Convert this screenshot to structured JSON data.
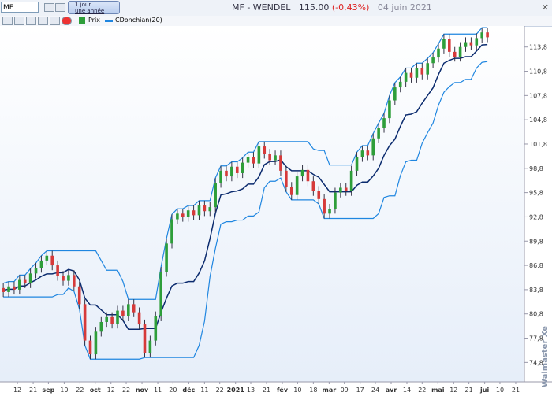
{
  "ui": {
    "symbol": "MF",
    "period": [
      "1 jour",
      "une année"
    ],
    "watermark": "Walmaster Xe"
  },
  "chart_data": {
    "type": "candlestick",
    "title": "MF - WENDEL",
    "price": "115.00",
    "change": "(-0,43%)",
    "date": "04 juin 2021",
    "candles_name": "Prix",
    "up_color": "#2e9e3a",
    "down_color": "#d63a3a",
    "open": [
      84.0,
      83.5,
      84.2,
      83.8,
      85.0,
      84.6,
      85.8,
      86.5,
      87.4,
      88.0,
      86.8,
      85.5,
      84.9,
      85.6,
      84.2,
      82.0,
      77.5,
      75.8,
      78.6,
      79.8,
      80.4,
      79.6,
      81.2,
      80.5,
      82.0,
      81.0,
      79.5,
      76.0,
      77.5,
      80.5,
      86.0,
      89.5,
      92.5,
      93.2,
      92.8,
      93.6,
      93.0,
      94.2,
      93.5,
      94.0,
      97.0,
      98.5,
      97.8,
      99.0,
      98.2,
      99.5,
      100.2,
      99.4,
      101.5,
      100.6,
      99.8,
      100.4,
      98.5,
      96.5,
      95.5,
      97.8,
      98.6,
      97.2,
      96.0,
      95.0,
      93.2,
      93.8,
      95.8,
      96.4,
      96.0,
      98.5,
      100.2,
      101.0,
      100.4,
      102.5,
      103.8,
      105.0,
      107.2,
      108.8,
      109.5,
      110.6,
      110.0,
      111.2,
      110.4,
      111.8,
      112.5,
      113.6,
      114.8,
      113.2,
      112.6,
      113.8,
      114.4,
      114.0,
      114.9,
      115.6
    ],
    "high": [
      84.6,
      84.8,
      84.8,
      85.6,
      85.6,
      86.4,
      87.1,
      88.0,
      88.6,
      88.6,
      87.4,
      86.1,
      86.2,
      86.2,
      84.8,
      82.6,
      78.1,
      79.2,
      80.4,
      81.0,
      81.0,
      81.8,
      81.8,
      82.6,
      82.6,
      81.6,
      80.1,
      78.1,
      81.1,
      86.6,
      90.1,
      93.1,
      93.8,
      93.8,
      94.2,
      94.2,
      94.8,
      94.8,
      94.6,
      97.6,
      99.1,
      99.1,
      99.6,
      99.6,
      100.1,
      100.8,
      100.8,
      102.1,
      102.1,
      101.2,
      101.0,
      101.0,
      99.1,
      97.1,
      98.4,
      99.2,
      99.2,
      97.8,
      96.6,
      95.6,
      94.4,
      96.4,
      97.0,
      97.0,
      99.1,
      100.8,
      101.6,
      101.6,
      103.1,
      104.4,
      105.6,
      107.8,
      109.4,
      110.1,
      111.2,
      111.2,
      111.8,
      111.8,
      112.4,
      113.1,
      114.2,
      115.4,
      115.4,
      113.8,
      114.4,
      115.0,
      115.0,
      115.5,
      116.2,
      116.2
    ],
    "low": [
      82.9,
      82.9,
      83.2,
      83.2,
      84.0,
      84.0,
      85.2,
      85.9,
      86.8,
      86.2,
      84.9,
      84.3,
      84.3,
      83.6,
      81.4,
      76.9,
      75.2,
      75.2,
      78.0,
      79.2,
      79.0,
      79.0,
      79.9,
      79.9,
      80.4,
      78.9,
      75.4,
      75.4,
      76.9,
      79.9,
      85.4,
      88.9,
      91.9,
      92.2,
      92.2,
      92.4,
      92.4,
      92.9,
      92.9,
      93.4,
      96.4,
      97.2,
      97.2,
      97.6,
      97.6,
      98.9,
      98.8,
      98.8,
      100.0,
      99.2,
      99.2,
      97.9,
      95.9,
      94.9,
      94.9,
      97.2,
      96.6,
      95.4,
      94.4,
      92.6,
      92.6,
      93.2,
      95.2,
      95.4,
      95.4,
      97.9,
      99.6,
      99.8,
      99.8,
      101.9,
      103.2,
      104.4,
      106.6,
      108.2,
      108.9,
      109.4,
      109.4,
      109.8,
      109.8,
      111.2,
      111.9,
      113.0,
      112.6,
      112.0,
      112.0,
      113.2,
      113.4,
      113.4,
      114.3,
      114.4
    ],
    "close": [
      83.5,
      84.2,
      83.8,
      85.0,
      84.6,
      85.8,
      86.5,
      87.4,
      88.0,
      86.8,
      85.5,
      84.9,
      85.6,
      84.2,
      82.0,
      77.5,
      75.8,
      78.6,
      79.8,
      80.4,
      79.6,
      81.2,
      80.5,
      82.0,
      81.0,
      79.5,
      76.0,
      77.5,
      80.5,
      86.0,
      89.5,
      92.5,
      93.2,
      92.8,
      93.6,
      93.0,
      94.2,
      93.5,
      94.0,
      97.0,
      98.5,
      97.8,
      99.0,
      98.2,
      99.5,
      100.2,
      99.4,
      101.5,
      100.6,
      99.8,
      100.4,
      98.5,
      96.5,
      95.5,
      97.8,
      98.6,
      97.2,
      96.0,
      95.0,
      93.2,
      93.8,
      95.8,
      96.4,
      96.0,
      98.5,
      100.2,
      101.0,
      100.4,
      102.5,
      103.8,
      105.0,
      107.2,
      108.8,
      109.5,
      110.6,
      110.0,
      111.2,
      110.4,
      111.8,
      112.5,
      113.6,
      114.8,
      113.2,
      112.6,
      113.8,
      114.4,
      114.0,
      114.9,
      115.6,
      115.0
    ],
    "channel": {
      "name": "CDonchian(20)",
      "color": "#1f86e0",
      "middle_color": "#0b2b6e",
      "upper": [
        84.6,
        84.8,
        84.8,
        85.6,
        85.6,
        86.4,
        87.1,
        88.0,
        88.6,
        88.6,
        88.6,
        88.6,
        88.6,
        88.6,
        88.6,
        88.6,
        88.6,
        88.6,
        87.4,
        86.2,
        86.2,
        86.2,
        84.8,
        82.6,
        82.6,
        82.6,
        82.6,
        82.6,
        82.6,
        86.6,
        90.1,
        93.1,
        93.8,
        93.8,
        94.2,
        94.2,
        94.8,
        94.8,
        94.8,
        97.6,
        99.1,
        99.1,
        99.6,
        99.6,
        100.1,
        100.8,
        100.8,
        102.1,
        102.1,
        102.1,
        102.1,
        102.1,
        102.1,
        102.1,
        102.1,
        102.1,
        102.1,
        101.2,
        101.0,
        101.0,
        99.2,
        99.2,
        99.2,
        99.2,
        99.2,
        100.8,
        101.6,
        101.6,
        103.1,
        104.4,
        105.6,
        107.8,
        109.4,
        110.1,
        111.2,
        111.2,
        111.8,
        111.8,
        112.4,
        113.1,
        114.2,
        115.4,
        115.4,
        115.4,
        115.4,
        115.4,
        115.4,
        115.4,
        116.2,
        116.2
      ],
      "middle": [
        83.75,
        83.85,
        83.85,
        84.25,
        84.25,
        84.65,
        85.0,
        85.45,
        85.75,
        85.75,
        85.9,
        85.9,
        86.3,
        86.1,
        85.0,
        82.75,
        81.9,
        81.9,
        81.3,
        80.7,
        80.7,
        80.7,
        80.0,
        78.9,
        78.9,
        78.9,
        79.0,
        79.0,
        79.0,
        81.0,
        82.75,
        84.25,
        84.6,
        84.6,
        84.8,
        84.8,
        85.85,
        87.35,
        90.1,
        93.25,
        95.5,
        95.65,
        95.9,
        96.0,
        96.25,
        96.85,
        96.85,
        97.75,
        99.25,
        99.65,
        99.65,
        99.85,
        99.0,
        98.5,
        98.5,
        98.5,
        98.5,
        98.05,
        97.7,
        96.8,
        95.9,
        95.9,
        95.9,
        95.9,
        95.9,
        96.7,
        97.1,
        97.1,
        97.85,
        98.8,
        100.4,
        101.6,
        102.4,
        104.0,
        105.4,
        105.5,
        105.8,
        106.85,
        107.8,
        108.75,
        110.4,
        111.8,
        112.15,
        112.4,
        112.4,
        112.6,
        112.6,
        113.3,
        114.05,
        114.1
      ],
      "lower": [
        82.9,
        82.9,
        82.9,
        82.9,
        82.9,
        82.9,
        82.9,
        82.9,
        82.9,
        82.9,
        83.2,
        83.2,
        84.0,
        83.6,
        81.4,
        76.9,
        75.2,
        75.2,
        75.2,
        75.2,
        75.2,
        75.2,
        75.2,
        75.2,
        75.2,
        75.2,
        75.4,
        75.4,
        75.4,
        75.4,
        75.4,
        75.4,
        75.4,
        75.4,
        75.4,
        75.4,
        76.9,
        79.9,
        85.4,
        88.9,
        91.9,
        92.2,
        92.2,
        92.4,
        92.4,
        92.9,
        92.9,
        93.4,
        96.4,
        97.2,
        97.2,
        97.6,
        95.9,
        94.9,
        94.9,
        94.9,
        94.9,
        94.9,
        94.4,
        92.6,
        92.6,
        92.6,
        92.6,
        92.6,
        92.6,
        92.6,
        92.6,
        92.6,
        92.6,
        93.2,
        95.2,
        95.4,
        95.4,
        97.9,
        99.6,
        99.8,
        99.8,
        101.9,
        103.2,
        104.4,
        106.6,
        108.2,
        108.9,
        109.4,
        109.4,
        109.8,
        109.8,
        111.2,
        111.9,
        112.0
      ]
    },
    "xlim": [
      -0.6,
      95.8
    ],
    "xticks": [
      {
        "value": 2.6,
        "label": "12"
      },
      {
        "value": 5.5,
        "label": "21"
      },
      {
        "value": 8.3,
        "label": "sep"
      },
      {
        "value": 11.2,
        "label": "10"
      },
      {
        "value": 14.1,
        "label": "22"
      },
      {
        "value": 16.9,
        "label": "oct"
      },
      {
        "value": 19.8,
        "label": "12"
      },
      {
        "value": 22.6,
        "label": "22"
      },
      {
        "value": 25.5,
        "label": "nov"
      },
      {
        "value": 28.4,
        "label": "11"
      },
      {
        "value": 31.2,
        "label": "20"
      },
      {
        "value": 34.1,
        "label": "déc"
      },
      {
        "value": 37.0,
        "label": "11"
      },
      {
        "value": 39.8,
        "label": "22"
      },
      {
        "value": 42.7,
        "label": "2021"
      },
      {
        "value": 45.5,
        "label": "13"
      },
      {
        "value": 48.4,
        "label": "21"
      },
      {
        "value": 51.3,
        "label": "fév"
      },
      {
        "value": 54.1,
        "label": "10"
      },
      {
        "value": 57.0,
        "label": "18"
      },
      {
        "value": 59.9,
        "label": "mar"
      },
      {
        "value": 62.7,
        "label": "09"
      },
      {
        "value": 65.6,
        "label": "17"
      },
      {
        "value": 68.4,
        "label": "24"
      },
      {
        "value": 71.3,
        "label": "avr"
      },
      {
        "value": 74.2,
        "label": "14"
      },
      {
        "value": 77.0,
        "label": "22"
      },
      {
        "value": 79.9,
        "label": "mai"
      },
      {
        "value": 82.8,
        "label": "12"
      },
      {
        "value": 85.6,
        "label": "21"
      },
      {
        "value": 88.5,
        "label": "jui"
      },
      {
        "value": 91.3,
        "label": "10"
      },
      {
        "value": 94.2,
        "label": "21"
      }
    ],
    "ylim": [
      72.4,
      116.4
    ],
    "yticks": [
      {
        "value": 113.8,
        "label": "113,8"
      },
      {
        "value": 110.8,
        "label": "110,8"
      },
      {
        "value": 107.8,
        "label": "107,8"
      },
      {
        "value": 104.8,
        "label": "104,8"
      },
      {
        "value": 101.8,
        "label": "101,8"
      },
      {
        "value": 98.8,
        "label": "98,8"
      },
      {
        "value": 95.8,
        "label": "95,8"
      },
      {
        "value": 92.8,
        "label": "92,8"
      },
      {
        "value": 89.8,
        "label": "89,8"
      },
      {
        "value": 86.8,
        "label": "86,8"
      },
      {
        "value": 83.8,
        "label": "83,8"
      },
      {
        "value": 80.8,
        "label": "80,8"
      },
      {
        "value": 77.8,
        "label": "77,8"
      },
      {
        "value": 74.8,
        "label": "74,8"
      }
    ]
  }
}
